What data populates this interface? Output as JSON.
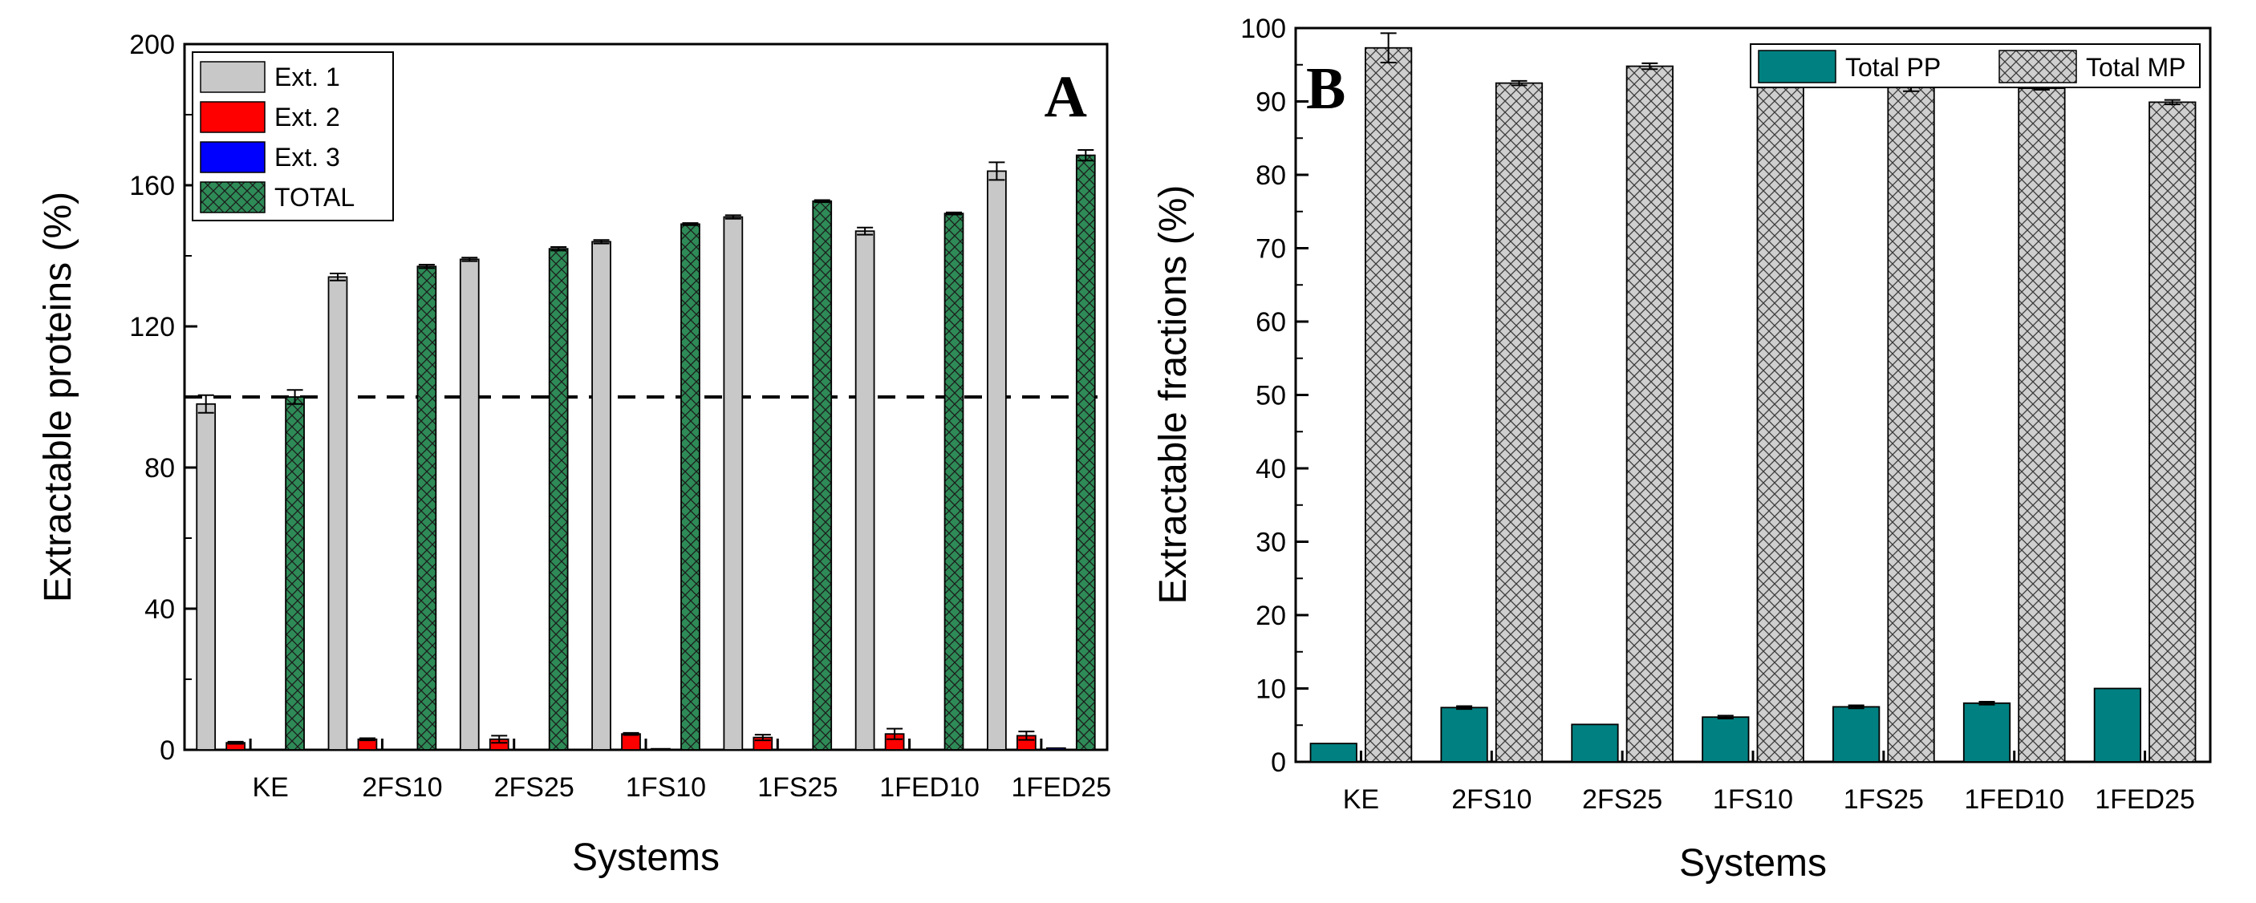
{
  "colors": {
    "ext1": "#c8c8c8",
    "ext2": "#ff0000",
    "ext3": "#0000ff",
    "total": "#2e8b57",
    "total_pp": "#008080",
    "total_mp": "#c8c8c8"
  },
  "chart_data": [
    {
      "type": "bar",
      "panel": "A",
      "xlabel": "Systems",
      "ylabel": "Extractable proteins (%)",
      "ylim": [
        0,
        200
      ],
      "yticks": [
        0,
        40,
        80,
        120,
        160,
        200
      ],
      "grid": false,
      "legend_position": "top-left",
      "reference_line": {
        "y": 100,
        "style": "dashed"
      },
      "categories": [
        "KE",
        "2FS10",
        "2FS25",
        "1FS10",
        "1FS25",
        "1FED10",
        "1FED25"
      ],
      "series": [
        {
          "name": "Ext. 1",
          "values": [
            98,
            134,
            139,
            144,
            151,
            147,
            164
          ],
          "errors": [
            2.5,
            1,
            0.5,
            0.5,
            0.5,
            1,
            2.5
          ],
          "pattern": "solid"
        },
        {
          "name": "Ext. 2",
          "values": [
            2,
            3,
            3,
            4.5,
            3.5,
            4.5,
            4
          ],
          "errors": [
            0.3,
            0.3,
            1,
            0.3,
            0.8,
            1.5,
            1.2
          ],
          "pattern": "solid"
        },
        {
          "name": "Ext. 3",
          "values": [
            0,
            0,
            0,
            0.3,
            0,
            0,
            0.5
          ],
          "errors": [
            0,
            0,
            0,
            0,
            0,
            0,
            0
          ],
          "pattern": "solid"
        },
        {
          "name": "TOTAL",
          "values": [
            100,
            137,
            142,
            149,
            155.5,
            152,
            168.5
          ],
          "errors": [
            2,
            0.5,
            0.5,
            0.3,
            0.3,
            0.3,
            1.5
          ],
          "pattern": "crosshatch"
        }
      ]
    },
    {
      "type": "bar",
      "panel": "B",
      "xlabel": "Systems",
      "ylabel": "Extractable fractions (%)",
      "ylim": [
        0,
        100
      ],
      "yticks": [
        0,
        10,
        20,
        30,
        40,
        50,
        60,
        70,
        80,
        90,
        100
      ],
      "grid": false,
      "legend_position": "top-right",
      "categories": [
        "KE",
        "2FS10",
        "2FS25",
        "1FS10",
        "1FS25",
        "1FED10",
        "1FED25"
      ],
      "series": [
        {
          "name": "Total PP",
          "values": [
            2.5,
            7.4,
            5.1,
            6.1,
            7.5,
            8.0,
            10.0
          ],
          "errors": [
            0,
            0.2,
            0,
            0.2,
            0.2,
            0.2,
            0
          ],
          "pattern": "solid"
        },
        {
          "name": "Total MP",
          "values": [
            97.3,
            92.5,
            94.8,
            93.8,
            92.4,
            91.8,
            89.9
          ],
          "errors": [
            2.0,
            0.3,
            0.4,
            0.4,
            1.0,
            0.2,
            0.3
          ],
          "pattern": "crosshatch"
        }
      ]
    }
  ]
}
